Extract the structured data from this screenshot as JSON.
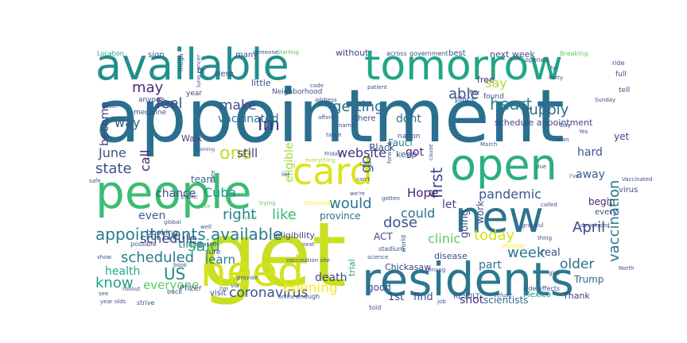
{
  "words": [
    {
      "text": "appointment",
      "color": "#2a6f8e"
    },
    {
      "text": "get",
      "color": "#c8df22"
    },
    {
      "text": "available",
      "color": "#218f8c"
    },
    {
      "text": "tomorrow",
      "color": "#21a685"
    },
    {
      "text": "people",
      "color": "#3dbc74"
    },
    {
      "text": "open",
      "color": "#29af7f"
    },
    {
      "text": "new",
      "color": "#2c738e"
    },
    {
      "text": "residents",
      "color": "#2a788e"
    },
    {
      "text": "need",
      "color": "#d5e21a"
    },
    {
      "text": "card",
      "color": "#dde318"
    },
    {
      "text": "appointments available",
      "color": "#287c8e"
    },
    {
      "text": "getting",
      "color": "#2e6e8e"
    },
    {
      "text": "make",
      "color": "#3e4c8a"
    },
    {
      "text": "able",
      "color": "#3a538b"
    },
    {
      "text": "heart",
      "color": "#277f8e"
    },
    {
      "text": "Im",
      "color": "#46337e"
    },
    {
      "text": "one",
      "color": "#bddf26"
    },
    {
      "text": "first",
      "color": "#3e4a89"
    },
    {
      "text": "website",
      "color": "#46307e"
    },
    {
      "text": "state",
      "color": "#3b518b"
    },
    {
      "text": "may",
      "color": "#482878"
    },
    {
      "text": "feel",
      "color": "#3f4889"
    },
    {
      "text": "vaccinated",
      "color": "#2d708e"
    },
    {
      "text": "supply",
      "color": "#31678e"
    },
    {
      "text": "say",
      "color": "#addc30"
    },
    {
      "text": "scheduled",
      "color": "#287d8e"
    },
    {
      "text": "said",
      "color": "#27ad81"
    },
    {
      "text": "know",
      "color": "#1f9f88"
    },
    {
      "text": "US",
      "color": "#23888e"
    },
    {
      "text": "health",
      "color": "#22a785"
    },
    {
      "text": "coronavirus",
      "color": "#3b528b"
    },
    {
      "text": "opening",
      "color": "#fde725"
    },
    {
      "text": "everyone",
      "color": "#5ec962"
    },
    {
      "text": "right",
      "color": "#26828e"
    },
    {
      "text": "like",
      "color": "#3bbb75"
    },
    {
      "text": "would",
      "color": "#2b758e"
    },
    {
      "text": "dose",
      "color": "#3a548c"
    },
    {
      "text": "today",
      "color": "#d0e11c"
    },
    {
      "text": "April",
      "color": "#3e4989"
    },
    {
      "text": "week",
      "color": "#2a768e"
    },
    {
      "text": "older",
      "color": "#2c718e"
    },
    {
      "text": "vaccination",
      "color": "#2a788e"
    },
    {
      "text": "pandemic",
      "color": "#38588c"
    },
    {
      "text": "clinic",
      "color": "#5ec962"
    },
    {
      "text": "learn",
      "color": "#27808e"
    },
    {
      "text": "schedule",
      "color": "#414487"
    },
    {
      "text": "time",
      "color": "#23898e"
    },
    {
      "text": "chance",
      "color": "#3e4a89"
    },
    {
      "text": "even",
      "color": "#355f8d"
    },
    {
      "text": "way",
      "color": "#355e8d"
    },
    {
      "text": "June",
      "color": "#3b528b"
    },
    {
      "text": "become",
      "color": "#404688"
    },
    {
      "text": "call",
      "color": "#482576"
    },
    {
      "text": "go",
      "color": "#365d8d"
    },
    {
      "text": "Hope",
      "color": "#481f70"
    },
    {
      "text": "could",
      "color": "#2d708e"
    },
    {
      "text": "Cuba",
      "color": "#1f958b"
    },
    {
      "text": "still",
      "color": "#433e85"
    },
    {
      "text": "got",
      "color": "#482071"
    },
    {
      "text": "dont",
      "color": "#2e6f8e"
    },
    {
      "text": "eligible",
      "color": "#a2da37"
    },
    {
      "text": "Fauci",
      "color": "#277f8e"
    },
    {
      "text": "keep",
      "color": "#39568c"
    },
    {
      "text": "schedule appointment",
      "color": "#3f4788"
    },
    {
      "text": "part",
      "color": "#2a778e"
    },
    {
      "text": "death",
      "color": "#3f4788"
    },
    {
      "text": "trial",
      "color": "#20a386"
    },
    {
      "text": "good",
      "color": "#3b518b"
    },
    {
      "text": "1st",
      "color": "#414487"
    },
    {
      "text": "find",
      "color": "#3b528b"
    },
    {
      "text": "shot",
      "color": "#472d7b"
    },
    {
      "text": "scientists",
      "color": "#2e6d8e"
    },
    {
      "text": "Thank",
      "color": "#453781"
    },
    {
      "text": "Mexico",
      "color": "#21918c"
    },
    {
      "text": "hard",
      "color": "#3b528b"
    },
    {
      "text": "yet",
      "color": "#3f4788"
    },
    {
      "text": "begin",
      "color": "#482475"
    },
    {
      "text": "away",
      "color": "#38588c"
    },
    {
      "text": "let",
      "color": "#433e85"
    },
    {
      "text": "going",
      "color": "#3e4989"
    },
    {
      "text": "real",
      "color": "#3e4a89"
    },
    {
      "text": "work",
      "color": "#3b528b"
    },
    {
      "text": "Trump",
      "color": "#31688e"
    },
    {
      "text": "every",
      "color": "#3b528b"
    },
    {
      "text": "team",
      "color": "#2d708e"
    },
    {
      "text": "province",
      "color": "#2c718e"
    },
    {
      "text": "eligibility",
      "color": "#3e4989"
    },
    {
      "text": "ACT",
      "color": "#3e4c8a"
    },
    {
      "text": "Black",
      "color": "#3b528b"
    },
    {
      "text": "Walk",
      "color": "#433e85"
    },
    {
      "text": "little",
      "color": "#3b528b"
    },
    {
      "text": "free",
      "color": "#482878"
    },
    {
      "text": "next week",
      "color": "#3e4c8a"
    },
    {
      "text": "Pfizer",
      "color": "#3b528b"
    },
    {
      "text": "Chickasaw",
      "color": "#424086"
    },
    {
      "text": "visit",
      "color": "#3e4c8a"
    },
    {
      "text": "booking",
      "color": "#3b528b"
    },
    {
      "text": "sure",
      "color": "#3b528b"
    },
    {
      "text": "without",
      "color": "#414487"
    },
    {
      "text": "best",
      "color": "#3b528b"
    },
    {
      "text": "sign",
      "color": "#3b528b"
    },
    {
      "text": "many",
      "color": "#3b528b"
    },
    {
      "text": "disease",
      "color": "#3e4989"
    },
    {
      "text": "virus",
      "color": "#3b528b"
    },
    {
      "text": "RESULT",
      "color": "#3b528b"
    },
    {
      "text": "place",
      "color": "#3b528b"
    },
    {
      "text": "found",
      "color": "#3b528b"
    },
    {
      "text": "medicine",
      "color": "#3b528b"
    },
    {
      "text": "anyone",
      "color": "#3e4c8a"
    },
    {
      "text": "year",
      "color": "#414487"
    },
    {
      "text": "Dr",
      "color": "#3b528b"
    },
    {
      "text": "Here",
      "color": "#3b528b"
    },
    {
      "text": "nation",
      "color": "#3b528b"
    },
    {
      "text": "Neighborhood",
      "color": "#3b528b"
    },
    {
      "text": "there",
      "color": "#3e4c8a"
    },
    {
      "text": "across",
      "color": "#3b528b"
    },
    {
      "text": "government",
      "color": "#3b528b"
    },
    {
      "text": "opened",
      "color": "#3b528b"
    },
    {
      "text": "Location",
      "color": "#20a386"
    },
    {
      "text": "Breaking",
      "color": "#5ec962"
    },
    {
      "text": "ride",
      "color": "#3b528b"
    },
    {
      "text": "Starting",
      "color": "#5ec962"
    },
    {
      "text": "mega",
      "color": "#3b528b"
    },
    {
      "text": "possible",
      "color": "#3b528b"
    },
    {
      "text": "global",
      "color": "#3b528b"
    },
    {
      "text": "released",
      "color": "#3b528b"
    },
    {
      "text": "provide",
      "color": "#3b528b"
    },
    {
      "text": "via",
      "color": "#3b528b"
    },
    {
      "text": "show",
      "color": "#3b528b"
    },
    {
      "text": "rollout",
      "color": "#3b528b"
    },
    {
      "text": "see",
      "color": "#3b528b"
    },
    {
      "text": "back",
      "color": "#3b528b"
    },
    {
      "text": "online",
      "color": "#3b528b"
    },
    {
      "text": "next",
      "color": "#3b528b"
    },
    {
      "text": "enough",
      "color": "#3b528b"
    },
    {
      "text": "strive",
      "color": "#3b528b"
    },
    {
      "text": "year olds",
      "color": "#3b528b"
    },
    {
      "text": "told",
      "color": "#3b528b"
    },
    {
      "text": "job",
      "color": "#3b528b"
    },
    {
      "text": "side effects",
      "color": "#3b528b"
    },
    {
      "text": "stadium",
      "color": "#3b528b"
    },
    {
      "text": "world",
      "color": "#3b528b"
    },
    {
      "text": "refuse",
      "color": "#3b528b"
    },
    {
      "text": "full",
      "color": "#3b528b"
    },
    {
      "text": "tell",
      "color": "#3b528b"
    },
    {
      "text": "code",
      "color": "#3b528b"
    },
    {
      "text": "address",
      "color": "#3b528b"
    },
    {
      "text": "patient",
      "color": "#3b528b"
    },
    {
      "text": "taken",
      "color": "#3b528b"
    },
    {
      "text": "name",
      "color": "#3b528b"
    },
    {
      "text": "afford",
      "color": "#3b528b"
    },
    {
      "text": "we're",
      "color": "#3b528b"
    },
    {
      "text": "Friday",
      "color": "#3b528b"
    },
    {
      "text": "coming",
      "color": "#3b528b"
    },
    {
      "text": "lung cancer",
      "color": "#3b528b"
    },
    {
      "text": "date",
      "color": "#3b528b"
    },
    {
      "text": "list",
      "color": "#3b528b"
    },
    {
      "text": "cant",
      "color": "#3b528b"
    },
    {
      "text": "can't",
      "color": "#3b528b"
    },
    {
      "text": "gotten",
      "color": "#3b528b"
    },
    {
      "text": "also",
      "color": "#3b528b"
    },
    {
      "text": "Party",
      "color": "#3b528b"
    },
    {
      "text": "I've",
      "color": "#3b528b"
    },
    {
      "text": "called",
      "color": "#3b528b"
    },
    {
      "text": "thing",
      "color": "#3b528b"
    },
    {
      "text": "grateful",
      "color": "#3b528b"
    },
    {
      "text": "developed",
      "color": "#3b528b"
    },
    {
      "text": "Monday",
      "color": "#fde725"
    },
    {
      "text": "vaccination site",
      "color": "#3b528b"
    },
    {
      "text": "everything",
      "color": "#a2da37"
    },
    {
      "text": "safe",
      "color": "#3b528b"
    },
    {
      "text": "public",
      "color": "#3b528b"
    },
    {
      "text": "site",
      "color": "#5ec962"
    },
    {
      "text": "trying",
      "color": "#5ec962"
    },
    {
      "text": "point",
      "color": "#5ec962"
    },
    {
      "text": "Cincinnati",
      "color": "#fde725"
    },
    {
      "text": "forward",
      "color": "#3b528b"
    },
    {
      "text": "cause",
      "color": "#3b528b"
    },
    {
      "text": "Ray",
      "color": "#3b528b"
    },
    {
      "text": "never",
      "color": "#3b528b"
    },
    {
      "text": "someone",
      "color": "#3b528b"
    },
    {
      "text": "far",
      "color": "#3b528b"
    },
    {
      "text": "Sunday",
      "color": "#3b528b"
    },
    {
      "text": "March",
      "color": "#3b528b"
    },
    {
      "text": "well",
      "color": "#3b528b"
    },
    {
      "text": "book",
      "color": "#3b528b"
    },
    {
      "text": "man",
      "color": "#3b528b"
    },
    {
      "text": "due",
      "color": "#3b528b"
    },
    {
      "text": "I'm",
      "color": "#3b528b"
    },
    {
      "text": "among",
      "color": "#3b528b"
    },
    {
      "text": "give",
      "color": "#3b528b"
    },
    {
      "text": "science",
      "color": "#3b528b"
    },
    {
      "text": "North",
      "color": "#3b528b"
    },
    {
      "text": "Day",
      "color": "#3b528b"
    },
    {
      "text": "Vaccinated",
      "color": "#3b528b"
    },
    {
      "text": "Yes",
      "color": "#3b528b"
    }
  ]
}
